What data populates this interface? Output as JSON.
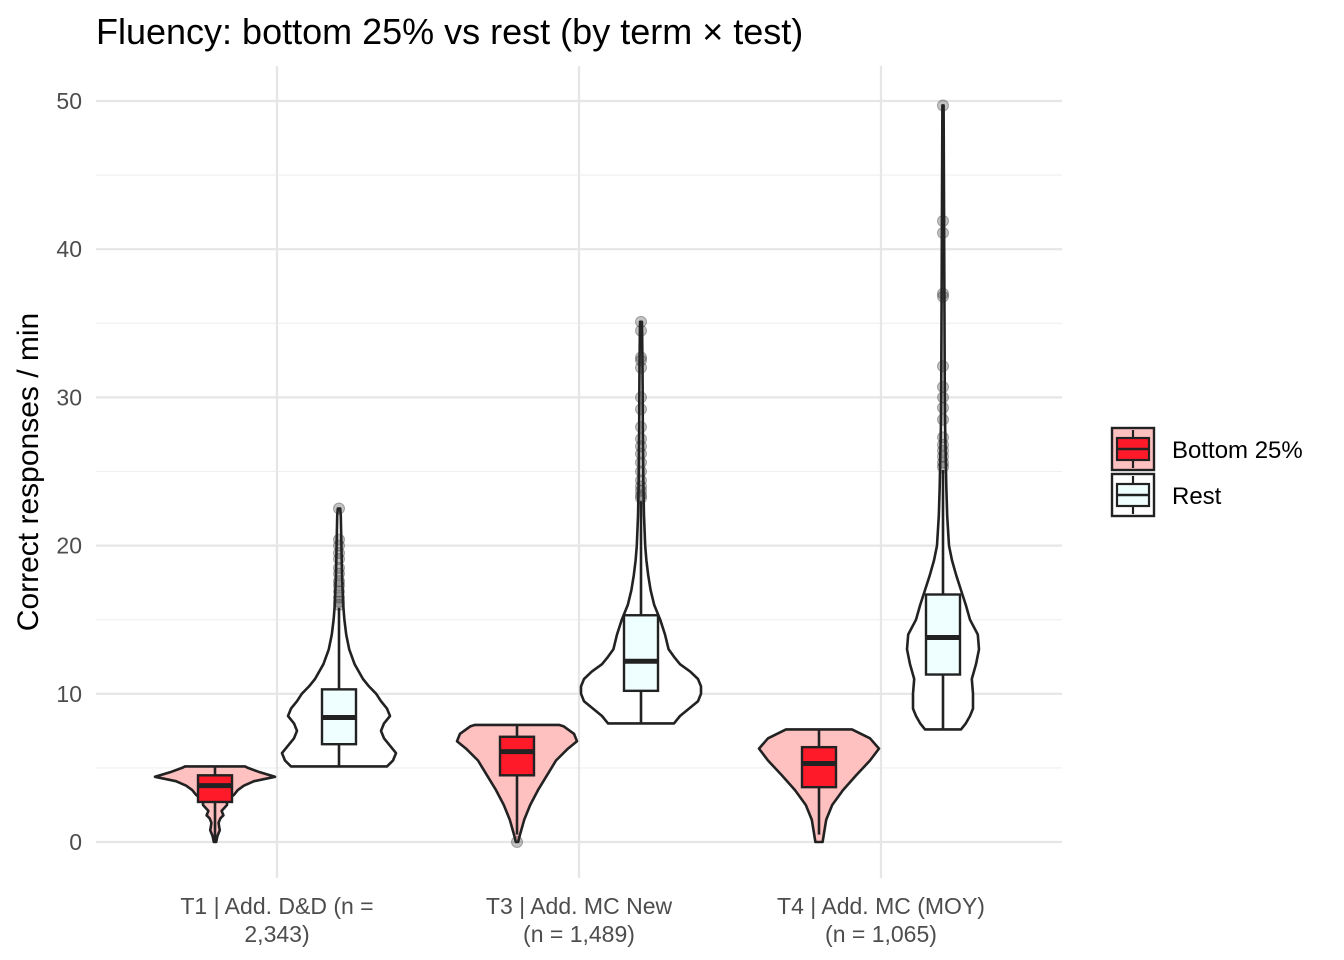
{
  "chart_data": {
    "type": "violin+box",
    "title": "Fluency: bottom 25% vs rest (by term × test)",
    "xlabel": "",
    "ylabel": "Correct responses / min",
    "ylim": [
      -2.5,
      52.5
    ],
    "yticks": [
      0,
      10,
      20,
      30,
      40,
      50
    ],
    "categories": [
      {
        "lines": [
          "T1 | Add. D&D (n =",
          "2,343)"
        ]
      },
      {
        "lines": [
          "T3 | Add. MC New",
          "(n = 1,489)"
        ]
      },
      {
        "lines": [
          "T4 | Add. MC (MOY)",
          "(n = 1,065)"
        ]
      }
    ],
    "legend": {
      "position": "right",
      "entries": [
        {
          "label": "Bottom 25%",
          "fill": "#ff1a2a",
          "violin_fill": "#ffc0c0"
        },
        {
          "label": "Rest",
          "fill": "#effefe",
          "violin_fill": "#ffffff"
        }
      ]
    },
    "series": [
      {
        "name": "Bottom 25%",
        "groups": [
          {
            "min": 0,
            "q1": 2.7,
            "median": 3.8,
            "q3": 4.5,
            "max": 5.1,
            "whisker_low": 0,
            "whisker_high": 5.1,
            "outliers": [],
            "density": [
              [
                0,
                0.02
              ],
              [
                0.4,
                0.04
              ],
              [
                0.8,
                0.08
              ],
              [
                1.0,
                0.07
              ],
              [
                1.3,
                0.06
              ],
              [
                1.6,
                0.09
              ],
              [
                1.8,
                0.14
              ],
              [
                2.1,
                0.11
              ],
              [
                2.5,
                0.2
              ],
              [
                2.8,
                0.2
              ],
              [
                3.2,
                0.32
              ],
              [
                3.5,
                0.38
              ],
              [
                3.8,
                0.48
              ],
              [
                4.1,
                0.65
              ],
              [
                4.4,
                1.0
              ],
              [
                4.7,
                0.75
              ],
              [
                5.0,
                0.55
              ],
              [
                5.1,
                0.5
              ]
            ]
          },
          {
            "min": 0,
            "q1": 4.5,
            "median": 6.1,
            "q3": 7.1,
            "max": 7.9,
            "whisker_low": 0.5,
            "whisker_high": 7.9,
            "outliers": [
              0
            ],
            "density": [
              [
                0,
                0.02
              ],
              [
                0.5,
                0.05
              ],
              [
                1.5,
                0.12
              ],
              [
                2.5,
                0.22
              ],
              [
                3.5,
                0.35
              ],
              [
                4.5,
                0.5
              ],
              [
                5.5,
                0.65
              ],
              [
                6.3,
                0.85
              ],
              [
                6.8,
                1.0
              ],
              [
                7.3,
                0.95
              ],
              [
                7.8,
                0.78
              ],
              [
                7.9,
                0.7
              ]
            ]
          },
          {
            "min": 0,
            "q1": 3.7,
            "median": 5.3,
            "q3": 6.4,
            "max": 7.6,
            "whisker_low": 0.5,
            "whisker_high": 7.6,
            "outliers": [],
            "density": [
              [
                0,
                0.06
              ],
              [
                0.5,
                0.08
              ],
              [
                1.5,
                0.12
              ],
              [
                2.5,
                0.22
              ],
              [
                3.5,
                0.4
              ],
              [
                4.5,
                0.62
              ],
              [
                5.5,
                0.85
              ],
              [
                6.3,
                1.0
              ],
              [
                7.0,
                0.85
              ],
              [
                7.6,
                0.55
              ]
            ]
          }
        ]
      },
      {
        "name": "Rest",
        "groups": [
          {
            "min": 5.1,
            "q1": 6.6,
            "median": 8.4,
            "q3": 10.3,
            "max": 22.5,
            "whisker_low": 5.1,
            "whisker_high": 15.8,
            "outliers": [
              16.0,
              16.2,
              16.5,
              16.9,
              17.3,
              17.6,
              18.1,
              18.5,
              19.1,
              19.5,
              20.0,
              20.4,
              22.5
            ],
            "density": [
              [
                5.1,
                0.8
              ],
              [
                5.5,
                0.9
              ],
              [
                6.0,
                0.95
              ],
              [
                6.5,
                0.85
              ],
              [
                7.0,
                0.75
              ],
              [
                7.5,
                0.7
              ],
              [
                8.0,
                0.75
              ],
              [
                8.5,
                0.85
              ],
              [
                9.0,
                0.8
              ],
              [
                9.5,
                0.7
              ],
              [
                10.0,
                0.62
              ],
              [
                10.5,
                0.5
              ],
              [
                11.0,
                0.4
              ],
              [
                12.0,
                0.26
              ],
              [
                13.0,
                0.17
              ],
              [
                14.0,
                0.12
              ],
              [
                15.0,
                0.09
              ],
              [
                16.0,
                0.07
              ],
              [
                17.0,
                0.06
              ],
              [
                18.0,
                0.05
              ],
              [
                19.0,
                0.045
              ],
              [
                20.0,
                0.04
              ],
              [
                21.0,
                0.035
              ],
              [
                22.0,
                0.03
              ],
              [
                22.5,
                0.02
              ]
            ]
          },
          {
            "min": 8.0,
            "q1": 10.2,
            "median": 12.2,
            "q3": 15.3,
            "max": 35.1,
            "whisker_low": 8.0,
            "whisker_high": 23.0,
            "outliers": [
              23.2,
              23.4,
              23.7,
              24.0,
              24.4,
              25.0,
              25.6,
              26.2,
              26.7,
              27.2,
              28.0,
              29.2,
              30.0,
              32.0,
              32.5,
              32.7,
              34.5,
              35.1
            ],
            "density": [
              [
                8.0,
                0.55
              ],
              [
                8.5,
                0.65
              ],
              [
                9.0,
                0.8
              ],
              [
                9.5,
                0.95
              ],
              [
                10.0,
                1.0
              ],
              [
                10.5,
                1.0
              ],
              [
                11.0,
                0.95
              ],
              [
                11.5,
                0.82
              ],
              [
                12.0,
                0.65
              ],
              [
                12.5,
                0.55
              ],
              [
                13.0,
                0.46
              ],
              [
                14.0,
                0.4
              ],
              [
                15.0,
                0.32
              ],
              [
                16.0,
                0.22
              ],
              [
                17.0,
                0.16
              ],
              [
                18.0,
                0.12
              ],
              [
                19.0,
                0.09
              ],
              [
                20.0,
                0.07
              ],
              [
                22.0,
                0.05
              ],
              [
                24.0,
                0.04
              ],
              [
                26.0,
                0.035
              ],
              [
                28.0,
                0.03
              ],
              [
                30.0,
                0.028
              ],
              [
                32.0,
                0.025
              ],
              [
                34.0,
                0.02
              ],
              [
                35.1,
                0.015
              ]
            ]
          },
          {
            "min": 7.6,
            "q1": 11.3,
            "median": 13.8,
            "q3": 16.7,
            "max": 49.7,
            "whisker_low": 7.6,
            "whisker_high": 25.1,
            "outliers": [
              25.3,
              25.6,
              26.0,
              26.4,
              26.8,
              27.3,
              28.5,
              29.3,
              30.0,
              30.7,
              32.1,
              36.8,
              37.0,
              41.1,
              41.9,
              49.7
            ],
            "density": [
              [
                7.6,
                0.3
              ],
              [
                8.0,
                0.38
              ],
              [
                8.5,
                0.45
              ],
              [
                9.0,
                0.5
              ],
              [
                10.0,
                0.5
              ],
              [
                11.0,
                0.48
              ],
              [
                12.0,
                0.55
              ],
              [
                13.0,
                0.6
              ],
              [
                14.0,
                0.58
              ],
              [
                15.0,
                0.45
              ],
              [
                16.0,
                0.38
              ],
              [
                17.0,
                0.3
              ],
              [
                18.0,
                0.22
              ],
              [
                19.0,
                0.15
              ],
              [
                20.0,
                0.1
              ],
              [
                22.0,
                0.07
              ],
              [
                24.0,
                0.055
              ],
              [
                26.0,
                0.045
              ],
              [
                28.0,
                0.035
              ],
              [
                30.0,
                0.03
              ],
              [
                35.0,
                0.025
              ],
              [
                40.0,
                0.02
              ],
              [
                45.0,
                0.015
              ],
              [
                49.7,
                0.01
              ]
            ]
          }
        ]
      }
    ]
  }
}
